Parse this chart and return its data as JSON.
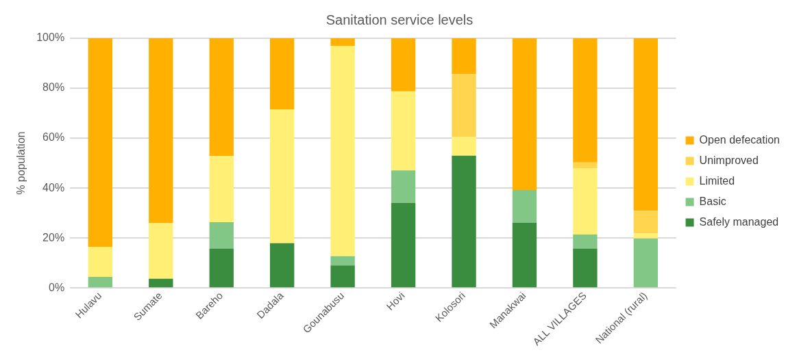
{
  "chart_data": {
    "type": "bar",
    "title": "Sanitation service levels",
    "ylabel": "% population",
    "stacked": true,
    "categories": [
      "Hulavu",
      "Sumate",
      "Bareho",
      "Dadala",
      "Gounabusu",
      "Hovi",
      "Kolosori",
      "Manakwai",
      "ALL VILLAGES",
      "National (rural)"
    ],
    "series": [
      {
        "name": "Safely managed",
        "color": "#3a8d3f",
        "values": [
          0,
          3.7,
          15.8,
          17.9,
          9.0,
          34.1,
          53.0,
          26.1,
          15.8,
          0
        ]
      },
      {
        "name": "Basic",
        "color": "#82c785",
        "values": [
          4.4,
          0,
          10.5,
          0,
          3.7,
          13.0,
          0,
          13.1,
          5.6,
          19.8
        ]
      },
      {
        "name": "Limited",
        "color": "#ffef75",
        "values": [
          12.1,
          22.2,
          26.6,
          53.6,
          84.3,
          31.6,
          7.4,
          0,
          26.6,
          2.1
        ]
      },
      {
        "name": "Unimproved",
        "color": "#ffd54f",
        "values": [
          0,
          0,
          0,
          0,
          0,
          0,
          25.2,
          0,
          2.2,
          9.0
        ]
      },
      {
        "name": "Open defecation",
        "color": "#ffb000",
        "values": [
          83.5,
          74.1,
          47.1,
          28.5,
          3.0,
          21.3,
          14.4,
          60.8,
          49.8,
          69.1
        ]
      }
    ],
    "ylim": [
      0,
      100
    ],
    "yticks": [
      {
        "value": 0,
        "label": "0%"
      },
      {
        "value": 20,
        "label": "20%"
      },
      {
        "value": 40,
        "label": "40%"
      },
      {
        "value": 60,
        "label": "60%"
      },
      {
        "value": 80,
        "label": "80%"
      },
      {
        "value": 100,
        "label": "100%"
      }
    ],
    "grid": "y",
    "legend": "right"
  }
}
